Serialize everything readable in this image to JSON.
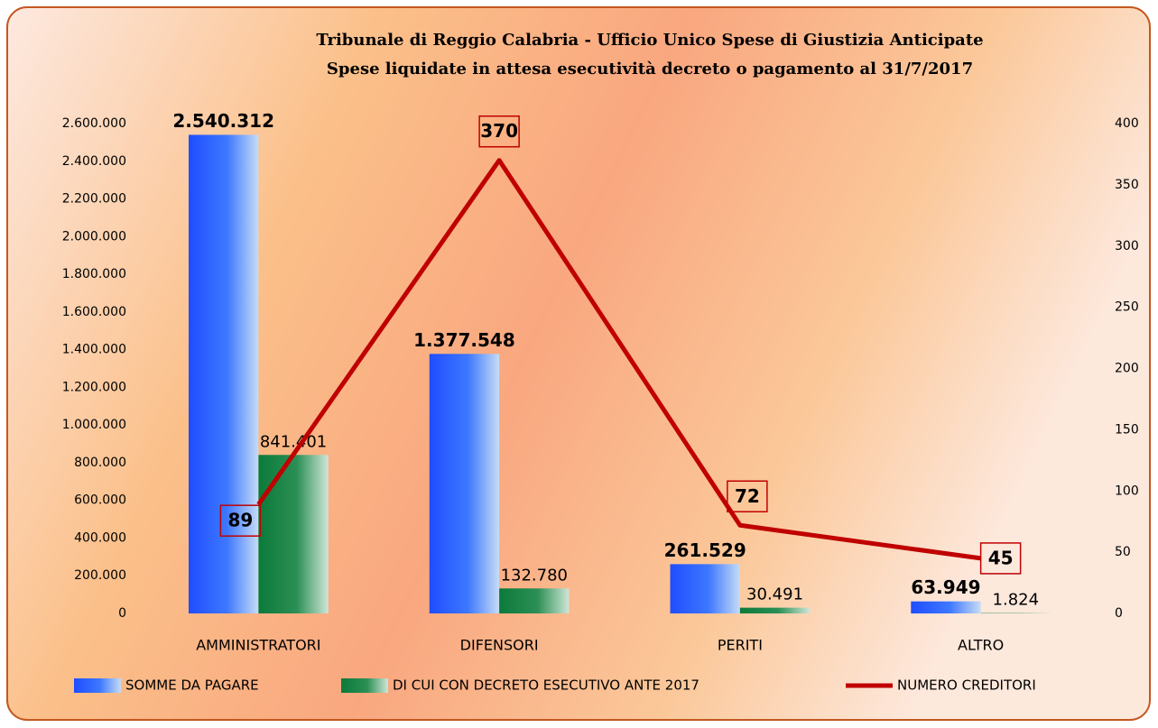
{
  "chart_data": {
    "type": "bar_line",
    "title": "Tribunale di Reggio Calabria - Ufficio Unico Spese di Giustizia Anticipate",
    "subtitle": "Spese liquidate in attesa esecutività decreto o pagamento al 31/7/2017",
    "categories": [
      "AMMINISTRATORI",
      "DIFENSORI",
      "PERITI",
      "ALTRO"
    ],
    "series": [
      {
        "name": "SOMME DA PAGARE",
        "color": "#1f4dff",
        "values": [
          2540312,
          1377548,
          261529,
          63949
        ],
        "value_labels": [
          "2.540.312",
          "1.377.548",
          "261.529",
          "63.949"
        ]
      },
      {
        "name": "DI CUI CON DECRETO ESECUTIVO ANTE 2017",
        "color": "#0b7a3a",
        "values": [
          841401,
          132780,
          30491,
          1824
        ],
        "value_labels": [
          "841.401",
          "132.780",
          "30.491",
          "1.824"
        ]
      },
      {
        "name": "NUMERO CREDITORI",
        "color": "#c00000",
        "type": "line",
        "axis": "y2",
        "values": [
          89,
          370,
          72,
          45
        ]
      }
    ],
    "ylim": [
      0,
      2600000
    ],
    "yticks": [
      0,
      {
        "value": 200000,
        "label": "200.000"
      },
      {
        "value": 400000,
        "label": "400.000"
      },
      {
        "value": 600000,
        "label": "600.000"
      },
      {
        "value": 800000,
        "label": "800.000"
      },
      {
        "value": 1000000,
        "label": "1.000.000"
      },
      {
        "value": 1200000,
        "label": "1.200.000"
      },
      {
        "value": 1400000,
        "label": "1.400.000"
      },
      {
        "value": 1600000,
        "label": "1.600.000"
      },
      {
        "value": 1800000,
        "label": "1.800.000"
      },
      {
        "value": 2000000,
        "label": "2.000.000"
      },
      {
        "value": 2200000,
        "label": "2.200.000"
      },
      {
        "value": 2400000,
        "label": "2.400.000"
      },
      {
        "value": 2600000,
        "label": "2.600.000"
      }
    ],
    "y2lim": [
      0,
      400
    ],
    "y2ticks": [
      0,
      50,
      100,
      150,
      200,
      250,
      300,
      350,
      400
    ],
    "legend": "bottom"
  }
}
